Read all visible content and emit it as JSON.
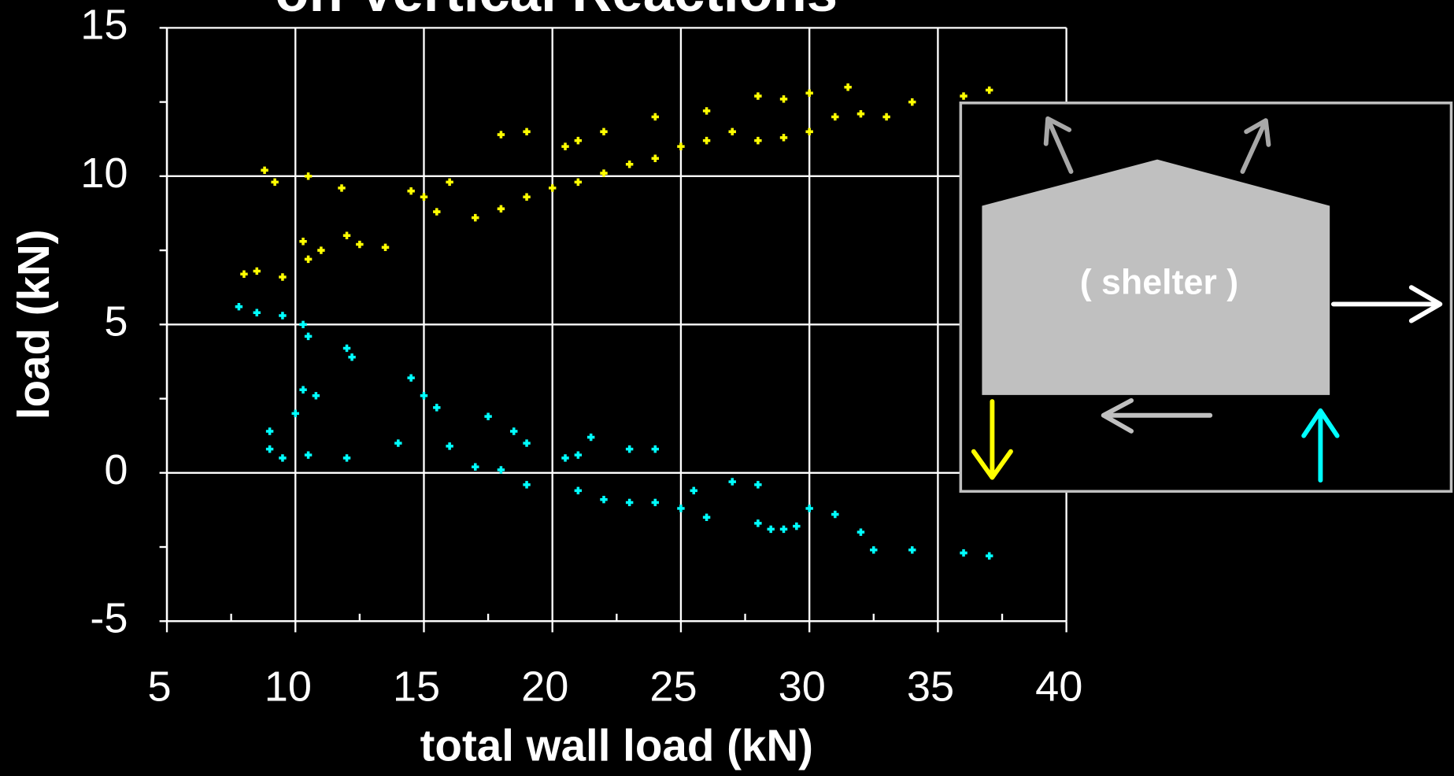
{
  "chart_data": {
    "type": "scatter",
    "title": "on Vertical Reactions",
    "xlabel": "total wall load (kN)",
    "ylabel": "load (kN)",
    "annotation": "( shelter )",
    "xlim": [
      5,
      40
    ],
    "ylim": [
      -5,
      15
    ],
    "xticks": [
      5,
      10,
      15,
      20,
      25,
      30,
      35,
      40
    ],
    "yticks": [
      -5,
      0,
      5,
      10,
      15
    ],
    "xminorticks": [
      7.5,
      12.5,
      17.5,
      22.5,
      27.5,
      32.5,
      37.5
    ],
    "yminorticks": [
      -2.5,
      2.5,
      7.5,
      12.5
    ],
    "grid": true,
    "series": [
      {
        "color": "#ffff00",
        "x": [
          8.8,
          9.2,
          10.5,
          11.8,
          8,
          8.5,
          9.5,
          10.3,
          10.5,
          11,
          12,
          12.5,
          13.5,
          14.5,
          15,
          15.5,
          16,
          17,
          18,
          19,
          20,
          20.5,
          21,
          22,
          21,
          22,
          23,
          24,
          25,
          26,
          27,
          28,
          29,
          30,
          31,
          32,
          33,
          28,
          29,
          30,
          31.5,
          34,
          36,
          37,
          24,
          26,
          18,
          19
        ],
        "values": [
          10.2,
          9.8,
          10.0,
          9.6,
          6.7,
          6.8,
          6.6,
          7.8,
          7.2,
          7.5,
          8,
          7.7,
          7.6,
          9.5,
          9.3,
          8.8,
          9.8,
          8.6,
          8.9,
          9.3,
          9.6,
          11.0,
          11.2,
          11.5,
          9.8,
          10.1,
          10.4,
          10.6,
          11.0,
          11.2,
          11.5,
          11.2,
          11.3,
          11.5,
          12.0,
          12.1,
          12.0,
          12.7,
          12.6,
          12.8,
          13.0,
          12.5,
          12.7,
          12.9,
          12.0,
          12.2,
          11.4,
          11.5
        ]
      },
      {
        "color": "#00ffff",
        "x": [
          7.8,
          8.5,
          9.5,
          10.3,
          10.5,
          12,
          12.2,
          10.3,
          10.8,
          10,
          9,
          9,
          9.5,
          10.5,
          12,
          14.5,
          15,
          15.5,
          14,
          16,
          17,
          18,
          17.5,
          18.5,
          19,
          20.5,
          21,
          21.5,
          23,
          24,
          19,
          21,
          22,
          23,
          24,
          25,
          25.5,
          26,
          27,
          28,
          28.5,
          29,
          29.5,
          28,
          30,
          31,
          32,
          32.5,
          34,
          36,
          37
        ],
        "values": [
          5.6,
          5.4,
          5.3,
          5.0,
          4.6,
          4.2,
          3.9,
          2.8,
          2.6,
          2.0,
          1.4,
          0.8,
          0.5,
          0.6,
          0.5,
          3.2,
          2.6,
          2.2,
          1.0,
          0.9,
          0.2,
          0.1,
          1.9,
          1.4,
          1.0,
          0.5,
          0.6,
          1.2,
          0.8,
          0.8,
          -0.4,
          -0.6,
          -0.9,
          -1.0,
          -1.0,
          -1.2,
          -0.6,
          -1.5,
          -0.3,
          -1.7,
          -1.9,
          -1.9,
          -1.8,
          -0.4,
          -1.2,
          -1.4,
          -2.0,
          -2.6,
          -2.6,
          -2.7,
          -2.8
        ]
      }
    ]
  }
}
